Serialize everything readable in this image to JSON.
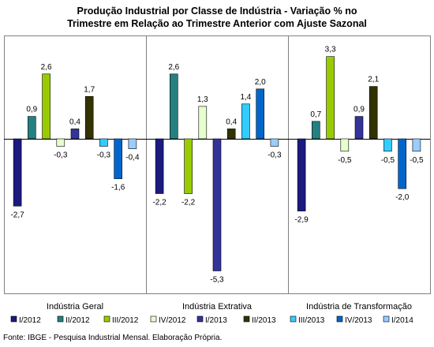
{
  "chart_data": {
    "type": "bar",
    "title_line1": "Produção Industrial por Classe de Indústria - Variação % no",
    "title_line2": "Trimestre em Relação ao Trimestre Anterior com Ajuste Sazonal",
    "groups": [
      "Indústria Geral",
      "Indústria Extrativa",
      "Indústria de Transformação"
    ],
    "series": [
      {
        "name": "I/2012",
        "color": "#1a1a80",
        "values": [
          -2.7,
          -2.2,
          -2.9
        ]
      },
      {
        "name": "II/2012",
        "color": "#268080",
        "values": [
          0.9,
          2.6,
          0.7
        ]
      },
      {
        "name": "III/2012",
        "color": "#99cc00",
        "values": [
          2.6,
          -2.2,
          3.3
        ]
      },
      {
        "name": "IV/2012",
        "color": "#e6ffcc",
        "values": [
          -0.3,
          1.3,
          -0.5
        ]
      },
      {
        "name": "I/2013",
        "color": "#333399",
        "values": [
          0.4,
          -5.3,
          0.9
        ]
      },
      {
        "name": "II/2013",
        "color": "#333300",
        "values": [
          1.7,
          0.4,
          2.1
        ]
      },
      {
        "name": "III/2013",
        "color": "#33ccff",
        "values": [
          -0.3,
          1.4,
          -0.5
        ]
      },
      {
        "name": "IV/2013",
        "color": "#0066cc",
        "values": [
          -1.6,
          2.0,
          -2.0
        ]
      },
      {
        "name": "I/2014",
        "color": "#99ccff",
        "values": [
          -0.4,
          -0.3,
          -0.5
        ]
      }
    ],
    "value_labels": [
      [
        "-2,7",
        "0,9",
        "2,6",
        "-0,3",
        "0,4",
        "1,7",
        "-0,3",
        "-1,6",
        "-0,4"
      ],
      [
        "-2,2",
        "2,6",
        "-2,2",
        "1,3",
        "-5,3",
        "0,4",
        "1,4",
        "2,0",
        "-0,3"
      ],
      [
        "-2,9",
        "0,7",
        "3,3",
        "-0,5",
        "0,9",
        "2,1",
        "-0,5",
        "-2,0",
        "-0,5"
      ]
    ],
    "ylim": [
      -5.6,
      3.6
    ],
    "grid": false,
    "legend_position": "bottom"
  },
  "source_note": "Fonte: IBGE - Pesquisa Industrial Mensal. Elaboração Própria."
}
